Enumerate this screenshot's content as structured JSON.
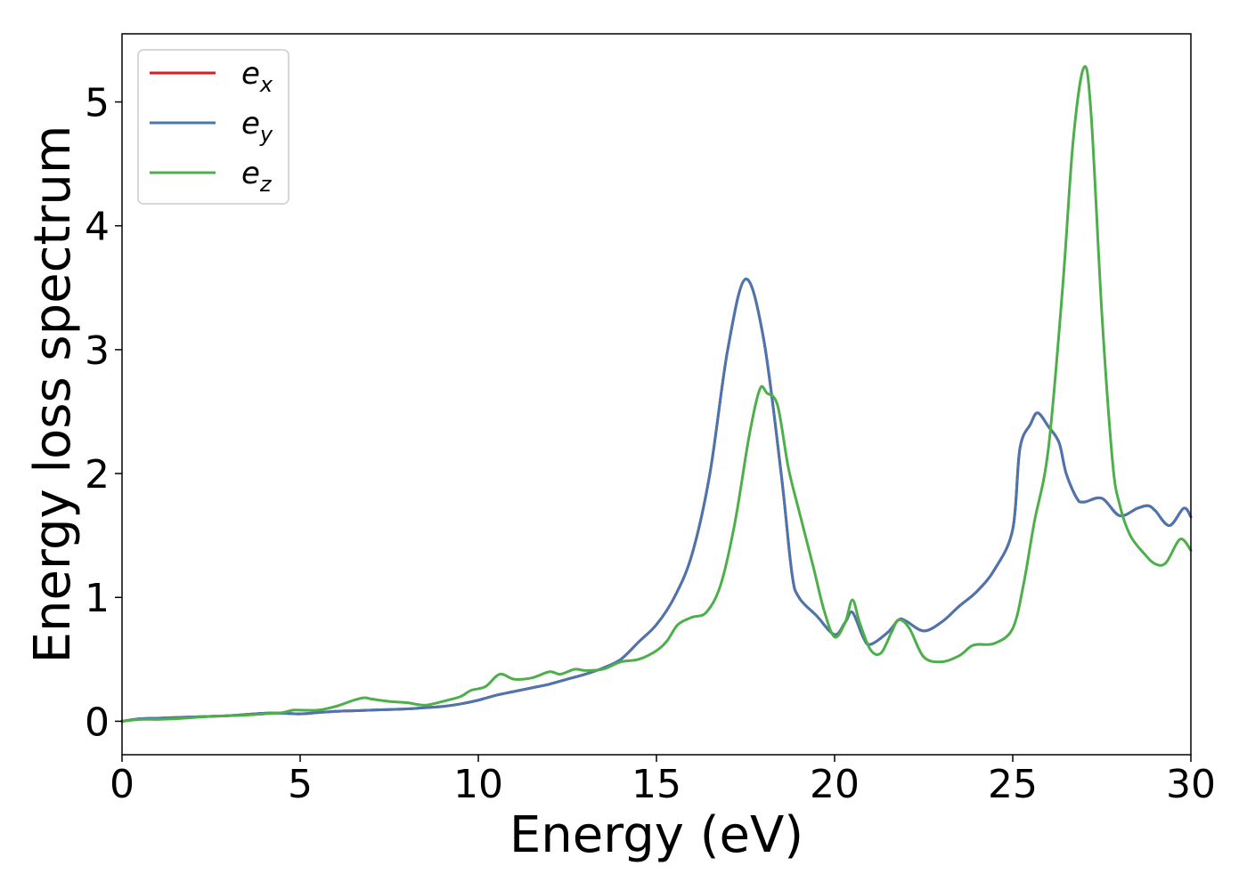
{
  "chart_data": {
    "type": "line",
    "title": "",
    "xlabel": "Energy (eV)",
    "ylabel": "Energy loss spectrum",
    "xlim": [
      0,
      30
    ],
    "ylim": [
      -0.27,
      5.55
    ],
    "xticks": [
      "0",
      "5",
      "10",
      "15",
      "20",
      "25",
      "30"
    ],
    "yticks": [
      "0",
      "1",
      "2",
      "3",
      "4",
      "5"
    ],
    "grid": false,
    "legend": {
      "position": "top-left",
      "entries": [
        {
          "base": "e",
          "sub": "x"
        },
        {
          "base": "e",
          "sub": "y"
        },
        {
          "base": "e",
          "sub": "z"
        }
      ]
    },
    "series": [
      {
        "name": "e_x",
        "color": "#e41a1c",
        "points": [
          [
            0,
            0
          ],
          [
            0.5,
            0.02
          ],
          [
            1,
            0.025
          ],
          [
            2,
            0.035
          ],
          [
            3,
            0.045
          ],
          [
            4,
            0.065
          ],
          [
            4.5,
            0.065
          ],
          [
            5,
            0.06
          ],
          [
            5.5,
            0.07
          ],
          [
            6,
            0.08
          ],
          [
            6.5,
            0.085
          ],
          [
            7,
            0.09
          ],
          [
            7.5,
            0.095
          ],
          [
            8,
            0.1
          ],
          [
            8.5,
            0.11
          ],
          [
            9,
            0.12
          ],
          [
            9.5,
            0.14
          ],
          [
            10,
            0.17
          ],
          [
            10.5,
            0.21
          ],
          [
            11,
            0.24
          ],
          [
            11.5,
            0.27
          ],
          [
            12,
            0.3
          ],
          [
            12.5,
            0.34
          ],
          [
            13,
            0.38
          ],
          [
            13.5,
            0.43
          ],
          [
            14,
            0.5
          ],
          [
            14.5,
            0.64
          ],
          [
            15,
            0.78
          ],
          [
            15.5,
            1.0
          ],
          [
            16,
            1.35
          ],
          [
            16.5,
            2.0
          ],
          [
            17,
            3.0
          ],
          [
            17.5,
            3.57
          ],
          [
            18,
            3.1
          ],
          [
            18.5,
            2.0
          ],
          [
            18.8,
            1.2
          ],
          [
            19,
            1.0
          ],
          [
            19.5,
            0.85
          ],
          [
            20,
            0.7
          ],
          [
            20.3,
            0.8
          ],
          [
            20.5,
            0.88
          ],
          [
            20.8,
            0.68
          ],
          [
            21,
            0.62
          ],
          [
            21.5,
            0.72
          ],
          [
            21.8,
            0.82
          ],
          [
            22,
            0.81
          ],
          [
            22.5,
            0.73
          ],
          [
            23,
            0.8
          ],
          [
            23.5,
            0.93
          ],
          [
            24,
            1.05
          ],
          [
            24.5,
            1.23
          ],
          [
            25,
            1.55
          ],
          [
            25.2,
            2.2
          ],
          [
            25.5,
            2.4
          ],
          [
            25.7,
            2.49
          ],
          [
            26,
            2.38
          ],
          [
            26.3,
            2.25
          ],
          [
            26.5,
            2.0
          ],
          [
            26.8,
            1.8
          ],
          [
            27,
            1.77
          ],
          [
            27.5,
            1.8
          ],
          [
            28,
            1.66
          ],
          [
            28.5,
            1.72
          ],
          [
            28.8,
            1.74
          ],
          [
            29,
            1.7
          ],
          [
            29.4,
            1.58
          ],
          [
            29.8,
            1.72
          ],
          [
            30,
            1.65
          ]
        ]
      },
      {
        "name": "e_y",
        "color": "#4a76b0",
        "points": [
          [
            0,
            0
          ],
          [
            0.5,
            0.02
          ],
          [
            1,
            0.025
          ],
          [
            2,
            0.035
          ],
          [
            3,
            0.045
          ],
          [
            4,
            0.065
          ],
          [
            4.5,
            0.065
          ],
          [
            5,
            0.06
          ],
          [
            5.5,
            0.07
          ],
          [
            6,
            0.08
          ],
          [
            6.5,
            0.085
          ],
          [
            7,
            0.09
          ],
          [
            7.5,
            0.095
          ],
          [
            8,
            0.1
          ],
          [
            8.5,
            0.11
          ],
          [
            9,
            0.12
          ],
          [
            9.5,
            0.14
          ],
          [
            10,
            0.17
          ],
          [
            10.5,
            0.21
          ],
          [
            11,
            0.24
          ],
          [
            11.5,
            0.27
          ],
          [
            12,
            0.3
          ],
          [
            12.5,
            0.34
          ],
          [
            13,
            0.38
          ],
          [
            13.5,
            0.43
          ],
          [
            14,
            0.5
          ],
          [
            14.5,
            0.64
          ],
          [
            15,
            0.78
          ],
          [
            15.5,
            1.0
          ],
          [
            16,
            1.35
          ],
          [
            16.5,
            2.0
          ],
          [
            17,
            3.0
          ],
          [
            17.5,
            3.57
          ],
          [
            18,
            3.1
          ],
          [
            18.5,
            2.0
          ],
          [
            18.8,
            1.2
          ],
          [
            19,
            1.0
          ],
          [
            19.5,
            0.85
          ],
          [
            20,
            0.7
          ],
          [
            20.3,
            0.8
          ],
          [
            20.5,
            0.88
          ],
          [
            20.8,
            0.68
          ],
          [
            21,
            0.62
          ],
          [
            21.5,
            0.72
          ],
          [
            21.8,
            0.82
          ],
          [
            22,
            0.81
          ],
          [
            22.5,
            0.73
          ],
          [
            23,
            0.8
          ],
          [
            23.5,
            0.93
          ],
          [
            24,
            1.05
          ],
          [
            24.5,
            1.23
          ],
          [
            25,
            1.55
          ],
          [
            25.2,
            2.2
          ],
          [
            25.5,
            2.4
          ],
          [
            25.7,
            2.49
          ],
          [
            26,
            2.38
          ],
          [
            26.3,
            2.25
          ],
          [
            26.5,
            2.0
          ],
          [
            26.8,
            1.8
          ],
          [
            27,
            1.77
          ],
          [
            27.5,
            1.8
          ],
          [
            28,
            1.66
          ],
          [
            28.5,
            1.72
          ],
          [
            28.8,
            1.74
          ],
          [
            29,
            1.7
          ],
          [
            29.4,
            1.58
          ],
          [
            29.8,
            1.72
          ],
          [
            30,
            1.65
          ]
        ]
      },
      {
        "name": "e_z",
        "color": "#4daf4a",
        "points": [
          [
            0,
            0
          ],
          [
            0.5,
            0.015
          ],
          [
            1,
            0.015
          ],
          [
            1.5,
            0.02
          ],
          [
            2,
            0.03
          ],
          [
            2.5,
            0.04
          ],
          [
            3,
            0.045
          ],
          [
            3.5,
            0.05
          ],
          [
            4,
            0.06
          ],
          [
            4.5,
            0.07
          ],
          [
            4.8,
            0.09
          ],
          [
            5,
            0.09
          ],
          [
            5.5,
            0.09
          ],
          [
            6,
            0.12
          ],
          [
            6.5,
            0.17
          ],
          [
            6.8,
            0.19
          ],
          [
            7,
            0.18
          ],
          [
            7.5,
            0.16
          ],
          [
            8,
            0.15
          ],
          [
            8.5,
            0.13
          ],
          [
            9,
            0.16
          ],
          [
            9.5,
            0.2
          ],
          [
            9.8,
            0.25
          ],
          [
            10.2,
            0.28
          ],
          [
            10.6,
            0.38
          ],
          [
            11,
            0.34
          ],
          [
            11.5,
            0.35
          ],
          [
            12,
            0.4
          ],
          [
            12.3,
            0.38
          ],
          [
            12.7,
            0.42
          ],
          [
            13,
            0.41
          ],
          [
            13.5,
            0.42
          ],
          [
            14,
            0.48
          ],
          [
            14.5,
            0.5
          ],
          [
            15,
            0.57
          ],
          [
            15.3,
            0.65
          ],
          [
            15.6,
            0.78
          ],
          [
            16,
            0.84
          ],
          [
            16.4,
            0.88
          ],
          [
            16.8,
            1.1
          ],
          [
            17.2,
            1.6
          ],
          [
            17.6,
            2.3
          ],
          [
            17.9,
            2.68
          ],
          [
            18.1,
            2.65
          ],
          [
            18.4,
            2.55
          ],
          [
            18.7,
            2.05
          ],
          [
            19,
            1.7
          ],
          [
            19.4,
            1.25
          ],
          [
            19.7,
            0.9
          ],
          [
            20,
            0.68
          ],
          [
            20.3,
            0.8
          ],
          [
            20.5,
            0.98
          ],
          [
            20.7,
            0.8
          ],
          [
            21,
            0.58
          ],
          [
            21.3,
            0.55
          ],
          [
            21.6,
            0.72
          ],
          [
            21.8,
            0.82
          ],
          [
            22.1,
            0.75
          ],
          [
            22.5,
            0.52
          ],
          [
            23,
            0.48
          ],
          [
            23.5,
            0.53
          ],
          [
            23.8,
            0.6
          ],
          [
            24,
            0.62
          ],
          [
            24.5,
            0.63
          ],
          [
            25,
            0.75
          ],
          [
            25.3,
            1.1
          ],
          [
            25.6,
            1.6
          ],
          [
            26,
            2.2
          ],
          [
            26.4,
            3.5
          ],
          [
            26.7,
            4.7
          ],
          [
            27,
            5.28
          ],
          [
            27.2,
            4.9
          ],
          [
            27.5,
            3.3
          ],
          [
            27.8,
            2.1
          ],
          [
            28,
            1.75
          ],
          [
            28.3,
            1.5
          ],
          [
            28.7,
            1.35
          ],
          [
            29,
            1.27
          ],
          [
            29.3,
            1.28
          ],
          [
            29.7,
            1.47
          ],
          [
            30,
            1.38
          ]
        ]
      }
    ]
  }
}
